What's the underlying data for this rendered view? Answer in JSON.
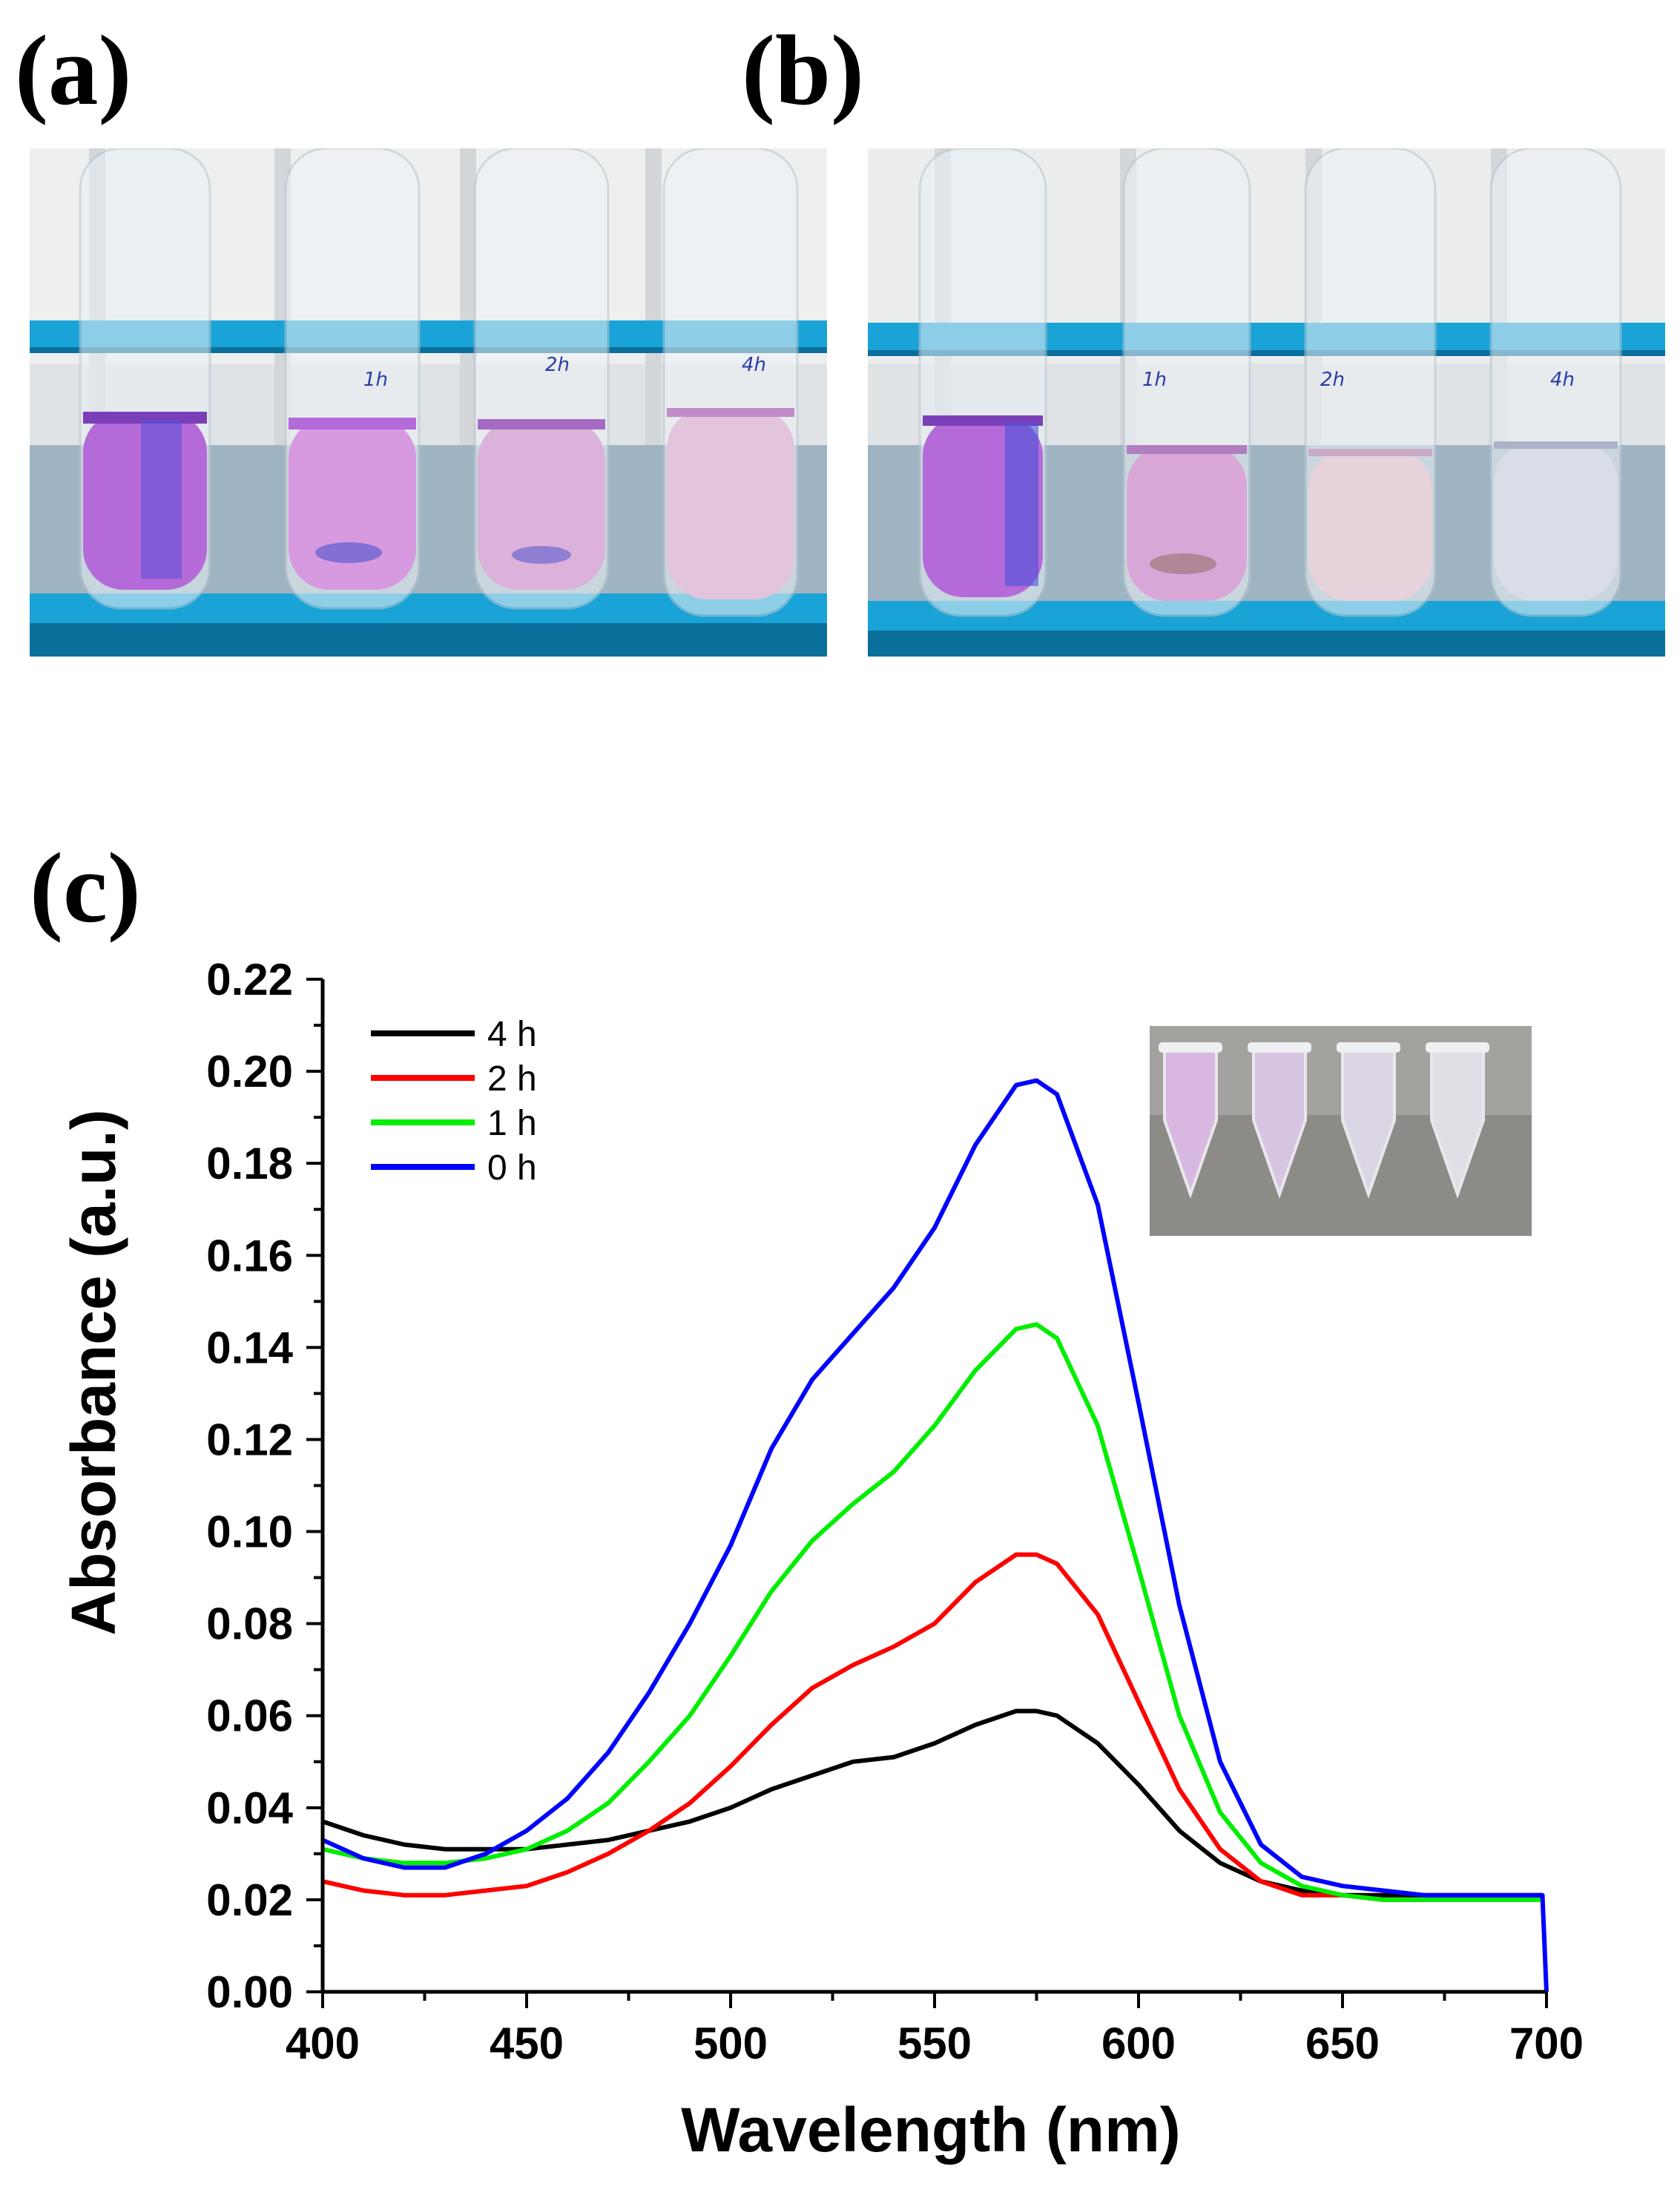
{
  "panels": {
    "a": {
      "label": "(a)",
      "tube_labels": [
        "",
        "1h",
        "2h",
        "4h"
      ]
    },
    "b": {
      "label": "(b)",
      "tube_labels": [
        "",
        "1h",
        "2h",
        "4h"
      ]
    },
    "c": {
      "label": "(c)"
    }
  },
  "colors": {
    "rack": "#1aa3d6",
    "rack_dark": "#0b6f9c",
    "liquid_0h": "#b46ad8",
    "liquid_1h": "#d79ae0",
    "liquid_2h": "#dcb2da",
    "liquid_4h_a": "#e2c4dc",
    "liquid_4h_b": "#d8dde8"
  },
  "chart_data": {
    "type": "line",
    "xlabel": "Wavelength (nm)",
    "ylabel": "Absorbance (a.u.)",
    "xlim": [
      400,
      700
    ],
    "ylim": [
      0,
      0.22
    ],
    "xticks": [
      "400",
      "450",
      "500",
      "550",
      "600",
      "650",
      "700"
    ],
    "yticks": [
      "0.00",
      "0.02",
      "0.04",
      "0.06",
      "0.08",
      "0.10",
      "0.12",
      "0.14",
      "0.16",
      "0.18",
      "0.20",
      "0.22"
    ],
    "legend_position": "top-left",
    "series": [
      {
        "name": "4 h",
        "color": "#000000",
        "x": [
          400,
          410,
          420,
          430,
          440,
          450,
          460,
          470,
          480,
          490,
          500,
          510,
          520,
          530,
          540,
          550,
          560,
          570,
          575,
          580,
          590,
          600,
          610,
          620,
          630,
          640,
          650,
          660,
          670,
          680,
          690,
          699
        ],
        "y": [
          0.037,
          0.034,
          0.032,
          0.031,
          0.031,
          0.031,
          0.032,
          0.033,
          0.035,
          0.037,
          0.04,
          0.044,
          0.047,
          0.05,
          0.051,
          0.054,
          0.058,
          0.061,
          0.061,
          0.06,
          0.054,
          0.045,
          0.035,
          0.028,
          0.024,
          0.022,
          0.021,
          0.021,
          0.021,
          0.021,
          0.021,
          0.021
        ]
      },
      {
        "name": "2 h",
        "color": "#ff0000",
        "x": [
          400,
          410,
          420,
          430,
          440,
          450,
          460,
          470,
          480,
          490,
          500,
          510,
          520,
          530,
          540,
          550,
          560,
          570,
          575,
          580,
          590,
          600,
          610,
          620,
          630,
          640,
          650,
          660,
          670
        ],
        "y": [
          0.024,
          0.022,
          0.021,
          0.021,
          0.022,
          0.023,
          0.026,
          0.03,
          0.035,
          0.041,
          0.049,
          0.058,
          0.066,
          0.071,
          0.075,
          0.08,
          0.089,
          0.095,
          0.095,
          0.093,
          0.082,
          0.063,
          0.044,
          0.031,
          0.024,
          0.021,
          0.021,
          0.02,
          0.02
        ]
      },
      {
        "name": "1 h",
        "color": "#00ee00",
        "x": [
          400,
          410,
          420,
          430,
          440,
          450,
          460,
          470,
          480,
          490,
          500,
          510,
          520,
          530,
          540,
          550,
          560,
          570,
          575,
          580,
          590,
          600,
          610,
          620,
          630,
          640,
          650,
          660,
          670,
          680,
          690,
          699
        ],
        "y": [
          0.031,
          0.029,
          0.028,
          0.028,
          0.029,
          0.031,
          0.035,
          0.041,
          0.05,
          0.06,
          0.073,
          0.087,
          0.098,
          0.106,
          0.113,
          0.123,
          0.135,
          0.144,
          0.145,
          0.142,
          0.123,
          0.092,
          0.06,
          0.039,
          0.028,
          0.023,
          0.021,
          0.02,
          0.02,
          0.02,
          0.02,
          0.02
        ]
      },
      {
        "name": "0 h",
        "color": "#0000ff",
        "x": [
          400,
          410,
          420,
          430,
          440,
          450,
          460,
          470,
          480,
          490,
          500,
          510,
          520,
          530,
          540,
          550,
          560,
          570,
          575,
          580,
          590,
          600,
          610,
          620,
          630,
          640,
          650,
          660,
          670,
          680,
          690,
          699,
          700
        ],
        "y": [
          0.033,
          0.029,
          0.027,
          0.027,
          0.03,
          0.035,
          0.042,
          0.052,
          0.065,
          0.08,
          0.097,
          0.118,
          0.133,
          0.143,
          0.153,
          0.166,
          0.184,
          0.197,
          0.198,
          0.195,
          0.171,
          0.128,
          0.084,
          0.05,
          0.032,
          0.025,
          0.023,
          0.022,
          0.021,
          0.021,
          0.021,
          0.021,
          0.0
        ]
      }
    ]
  }
}
